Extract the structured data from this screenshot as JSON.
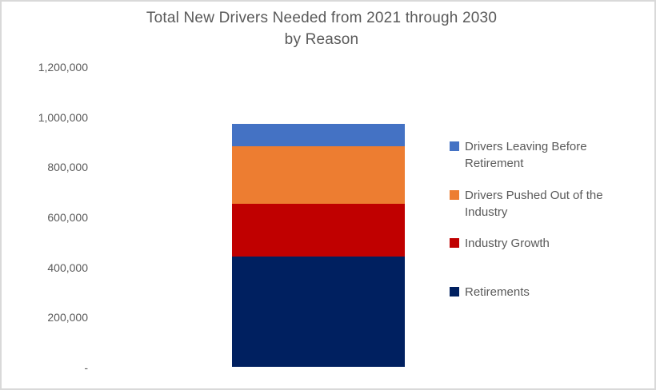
{
  "window": {
    "background_color": "#FFFFFF",
    "frame_border_color": "#D9D9D9",
    "text_color": "#595959"
  },
  "chart_data": {
    "type": "bar",
    "subtype": "stacked-column",
    "title": "Total New Drivers Needed from 2021 through 2030 by Reason",
    "title_lines": [
      "Total New Drivers Needed from 2021 through 2030",
      "by Reason"
    ],
    "xlabel": "",
    "ylabel": "",
    "categories": [
      ""
    ],
    "series": [
      {
        "name": "Retirements",
        "value": 440000,
        "color": "#002060"
      },
      {
        "name": "Industry Growth",
        "value": 210000,
        "color": "#C00000"
      },
      {
        "name": "Drivers Pushed Out of the Industry",
        "value": 230000,
        "color": "#ED7D31"
      },
      {
        "name": "Drivers Leaving Before Retirement",
        "value": 90000,
        "color": "#4472C4"
      }
    ],
    "stack_order": "bottom-to-top",
    "total": 970000,
    "y_axis": {
      "min": 0,
      "max": 1200000,
      "step": 200000,
      "tick_labels": [
        "1,200,000",
        "1,000,000",
        "800,000",
        "600,000",
        "400,000",
        "200,000",
        "-"
      ]
    },
    "legend": {
      "position": "right",
      "entries": [
        {
          "label": "Drivers Leaving Before Retirement",
          "color": "#4472C4"
        },
        {
          "label": "Drivers Pushed Out of the Industry",
          "color": "#ED7D31"
        },
        {
          "label": "Industry Growth",
          "color": "#C00000"
        },
        {
          "label": "Retirements",
          "color": "#002060"
        }
      ]
    },
    "gridlines": false
  }
}
